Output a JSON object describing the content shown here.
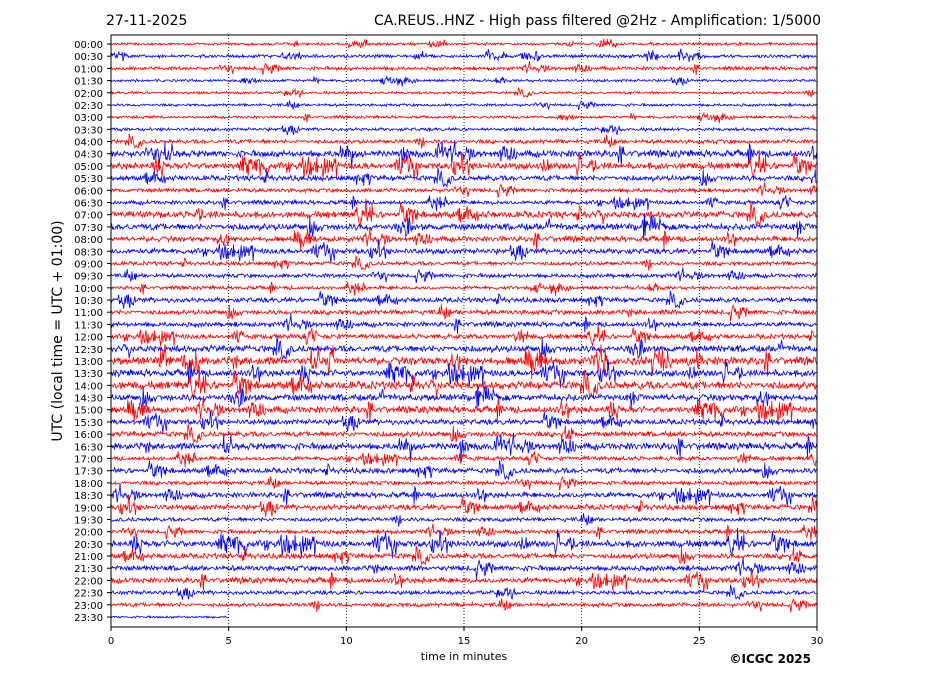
{
  "chart_data": {
    "type": "line",
    "date": "27-11-2025",
    "title": "CA.REUS..HNZ - High pass filtered @2Hz - Amplification: 1/5000",
    "xlabel": "time in minutes",
    "ylabel": "UTC (local time = UTC + 01:00)",
    "xlim": [
      0,
      30
    ],
    "x_ticks": [
      "0",
      "5",
      "10",
      "15",
      "20",
      "25",
      "30"
    ],
    "grid": "vertical dotted at 5-minute ticks",
    "colors": [
      "#ff0000",
      "#0000ff"
    ],
    "rows": [
      "00:00",
      "00:30",
      "01:00",
      "01:30",
      "02:00",
      "02:30",
      "03:00",
      "03:30",
      "04:00",
      "04:30",
      "05:00",
      "05:30",
      "06:00",
      "06:30",
      "07:00",
      "07:30",
      "08:00",
      "08:30",
      "09:00",
      "09:30",
      "10:00",
      "10:30",
      "11:00",
      "11:30",
      "12:00",
      "12:30",
      "13:00",
      "13:30",
      "14:00",
      "14:30",
      "15:00",
      "15:30",
      "16:00",
      "16:30",
      "17:00",
      "17:30",
      "18:00",
      "18:30",
      "19:00",
      "19:30",
      "20:00",
      "20:30",
      "21:00",
      "21:30",
      "22:00",
      "22:30",
      "23:00",
      "23:30"
    ],
    "relative_noise_level": [
      1,
      1.2,
      1.3,
      1,
      1,
      1,
      1,
      1.2,
      1.5,
      2.5,
      2.5,
      2,
      1.5,
      1.5,
      2.5,
      2.5,
      2,
      2,
      1.5,
      1.5,
      1.3,
      1.8,
      1.8,
      1.8,
      1.8,
      2.5,
      3,
      2.5,
      3,
      2.5,
      2.5,
      2,
      2,
      2.5,
      1.5,
      2,
      1.5,
      2,
      2,
      1.5,
      1.5,
      2.5,
      2,
      2,
      2,
      1.5,
      1.5,
      0.8
    ],
    "last_row_end_minute": 5
  },
  "footer": {
    "copyright": "©ICGC 2025"
  }
}
